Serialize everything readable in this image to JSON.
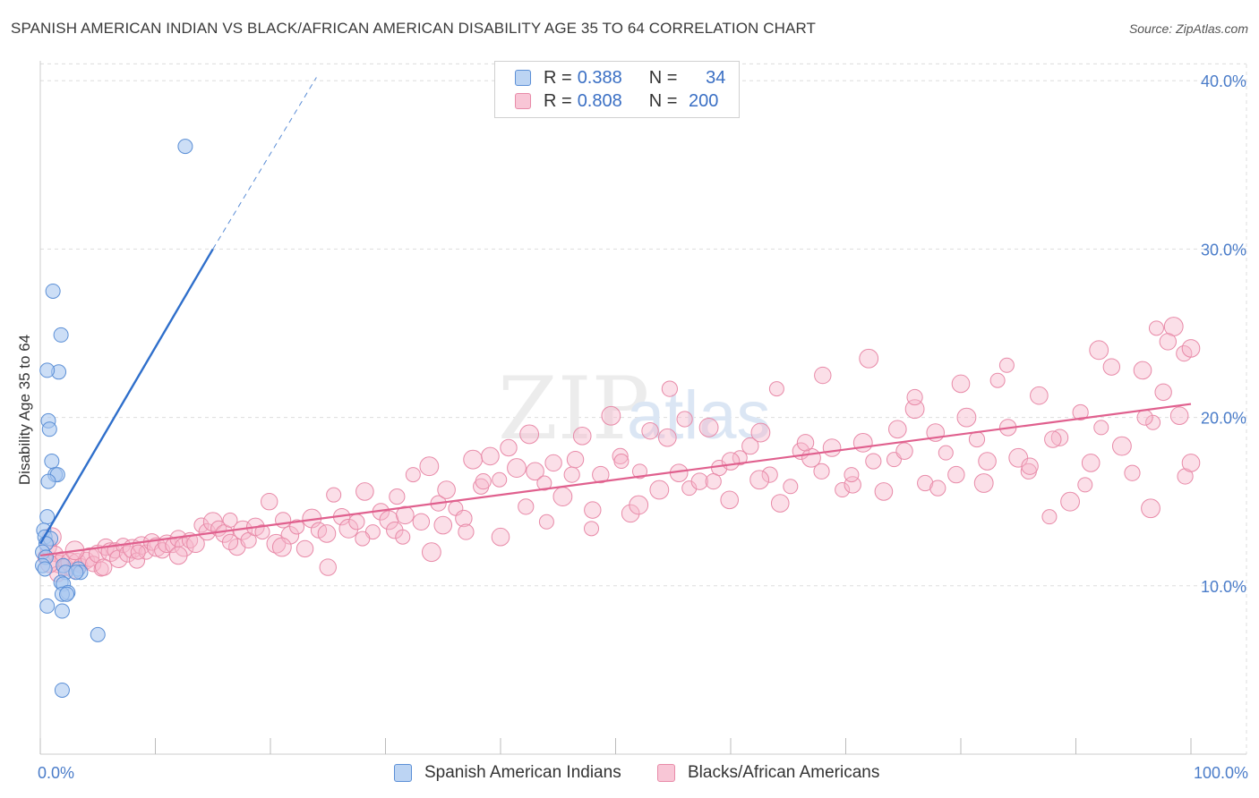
{
  "title": "SPANISH AMERICAN INDIAN VS BLACK/AFRICAN AMERICAN DISABILITY AGE 35 TO 64 CORRELATION CHART",
  "source": "Source: ZipAtlas.com",
  "watermark": {
    "zip": "ZIP",
    "atlas": "atlas"
  },
  "colors": {
    "blue_fill": "#aac8f0",
    "blue_stroke": "#5b8fd6",
    "blue_line": "#2f6fcb",
    "pink_fill": "#f6b8cb",
    "pink_stroke": "#e88aa8",
    "pink_line": "#e0608e",
    "tick_text": "#4a7cc9",
    "grid": "#dddddd"
  },
  "legend": {
    "rows": [
      {
        "r_label": "R =",
        "r_value": "0.388",
        "n_label": "N =",
        "n_value": "34"
      },
      {
        "r_label": "R =",
        "r_value": "0.808",
        "n_label": "N =",
        "n_value": "200"
      }
    ]
  },
  "bottom_legend": {
    "series1": "Spanish American Indians",
    "series2": "Blacks/African Americans"
  },
  "chart_data": {
    "type": "scatter",
    "title": "SPANISH AMERICAN INDIAN VS BLACK/AFRICAN AMERICAN DISABILITY AGE 35 TO 64 CORRELATION CHART",
    "xlabel": "",
    "ylabel": "Disability Age 35 to 64",
    "xlim": [
      0,
      100
    ],
    "ylim": [
      0,
      41.5
    ],
    "x_tick_labels": [
      "0.0%",
      "100.0%"
    ],
    "y_ticks": [
      {
        "value": 10,
        "label": "10.0%"
      },
      {
        "value": 20,
        "label": "20.0%"
      },
      {
        "value": 30,
        "label": "30.0%"
      },
      {
        "value": 40,
        "label": "40.0%"
      }
    ],
    "x_minor_ticks": [
      0,
      10,
      20,
      30,
      40,
      50,
      60,
      70,
      80,
      90,
      100
    ],
    "grid": true,
    "series": [
      {
        "name": "Spanish American Indians",
        "R": 0.388,
        "N": 34,
        "trend": {
          "x0": 0,
          "y0": 12.5,
          "x1": 15,
          "y1": 30.0,
          "dash_to_x": 24,
          "dash_to_y": 40.2
        },
        "points": [
          [
            12.6,
            36.1
          ],
          [
            1.1,
            27.5
          ],
          [
            1.8,
            24.9
          ],
          [
            1.6,
            22.7
          ],
          [
            0.6,
            22.8
          ],
          [
            0.7,
            19.8
          ],
          [
            0.8,
            19.3
          ],
          [
            1.0,
            17.4
          ],
          [
            1.3,
            16.6
          ],
          [
            1.5,
            16.6
          ],
          [
            0.7,
            16.2
          ],
          [
            0.6,
            14.1
          ],
          [
            0.3,
            13.3
          ],
          [
            0.4,
            12.9
          ],
          [
            0.9,
            12.8
          ],
          [
            0.5,
            12.5
          ],
          [
            0.2,
            12.0
          ],
          [
            0.5,
            11.7
          ],
          [
            0.2,
            11.2
          ],
          [
            0.4,
            11.0
          ],
          [
            2.0,
            11.2
          ],
          [
            3.3,
            11.0
          ],
          [
            3.5,
            10.8
          ],
          [
            2.2,
            10.8
          ],
          [
            1.8,
            10.2
          ],
          [
            2.0,
            10.1
          ],
          [
            2.4,
            9.6
          ],
          [
            1.9,
            9.5
          ],
          [
            2.3,
            9.5
          ],
          [
            0.6,
            8.8
          ],
          [
            1.9,
            8.5
          ],
          [
            5.0,
            7.1
          ],
          [
            1.9,
            3.8
          ],
          [
            3.1,
            10.8
          ]
        ]
      },
      {
        "name": "Blacks/African Americans",
        "R": 0.808,
        "N": 200,
        "trend": {
          "x0": 0,
          "y0": 11.8,
          "x1": 100,
          "y1": 20.8
        },
        "points": [
          [
            0.4,
            11.7
          ],
          [
            0.7,
            12.3
          ],
          [
            1.0,
            12.9
          ],
          [
            1.3,
            11.9
          ],
          [
            1.6,
            11.3
          ],
          [
            1.9,
            11.6
          ],
          [
            2.2,
            11.1
          ],
          [
            2.6,
            11.4
          ],
          [
            2.9,
            10.9
          ],
          [
            3.2,
            11.4
          ],
          [
            3.5,
            11.2
          ],
          [
            4.0,
            11.5
          ],
          [
            4.3,
            11.7
          ],
          [
            4.6,
            11.3
          ],
          [
            5.0,
            11.9
          ],
          [
            5.3,
            11.0
          ],
          [
            5.7,
            12.3
          ],
          [
            6.1,
            12.0
          ],
          [
            6.5,
            12.1
          ],
          [
            6.8,
            11.6
          ],
          [
            7.2,
            12.4
          ],
          [
            7.6,
            11.9
          ],
          [
            8.0,
            12.2
          ],
          [
            8.4,
            11.5
          ],
          [
            8.8,
            12.4
          ],
          [
            9.2,
            12.0
          ],
          [
            9.7,
            12.6
          ],
          [
            10.1,
            12.3
          ],
          [
            10.6,
            12.1
          ],
          [
            11.0,
            12.5
          ],
          [
            11.5,
            12.4
          ],
          [
            12.0,
            12.8
          ],
          [
            12.5,
            12.3
          ],
          [
            13.0,
            12.7
          ],
          [
            13.5,
            12.5
          ],
          [
            14.0,
            13.6
          ],
          [
            14.5,
            13.2
          ],
          [
            15.0,
            13.8
          ],
          [
            15.5,
            13.4
          ],
          [
            16.0,
            13.1
          ],
          [
            16.5,
            13.9
          ],
          [
            17.1,
            12.3
          ],
          [
            17.6,
            13.3
          ],
          [
            18.1,
            12.7
          ],
          [
            18.7,
            13.5
          ],
          [
            19.3,
            13.2
          ],
          [
            19.9,
            15.0
          ],
          [
            20.5,
            12.5
          ],
          [
            21.1,
            13.9
          ],
          [
            21.7,
            13.0
          ],
          [
            22.3,
            13.5
          ],
          [
            23.0,
            12.2
          ],
          [
            23.6,
            14.0
          ],
          [
            24.2,
            13.3
          ],
          [
            24.9,
            13.1
          ],
          [
            25.5,
            15.4
          ],
          [
            26.2,
            14.1
          ],
          [
            26.8,
            13.4
          ],
          [
            27.5,
            13.8
          ],
          [
            28.2,
            15.6
          ],
          [
            28.9,
            13.2
          ],
          [
            29.6,
            14.4
          ],
          [
            30.3,
            13.9
          ],
          [
            31.0,
            15.3
          ],
          [
            31.7,
            14.2
          ],
          [
            32.4,
            16.6
          ],
          [
            33.1,
            13.8
          ],
          [
            33.8,
            17.1
          ],
          [
            34.6,
            14.9
          ],
          [
            35.3,
            15.7
          ],
          [
            36.1,
            14.6
          ],
          [
            36.8,
            14.0
          ],
          [
            37.6,
            17.5
          ],
          [
            38.3,
            15.9
          ],
          [
            39.1,
            17.7
          ],
          [
            39.9,
            16.3
          ],
          [
            40.7,
            18.2
          ],
          [
            41.4,
            17.0
          ],
          [
            42.2,
            14.7
          ],
          [
            43.0,
            16.8
          ],
          [
            43.8,
            16.1
          ],
          [
            44.6,
            17.3
          ],
          [
            45.4,
            15.3
          ],
          [
            46.2,
            16.6
          ],
          [
            47.1,
            18.9
          ],
          [
            47.9,
            13.4
          ],
          [
            48.7,
            16.6
          ],
          [
            49.6,
            20.1
          ],
          [
            50.4,
            17.7
          ],
          [
            51.3,
            14.3
          ],
          [
            52.1,
            16.8
          ],
          [
            53.0,
            19.2
          ],
          [
            53.8,
            15.7
          ],
          [
            54.7,
            21.7
          ],
          [
            55.5,
            16.7
          ],
          [
            56.4,
            15.8
          ],
          [
            57.3,
            16.2
          ],
          [
            58.1,
            19.4
          ],
          [
            59.0,
            17.0
          ],
          [
            59.9,
            15.1
          ],
          [
            60.8,
            17.6
          ],
          [
            61.7,
            18.3
          ],
          [
            62.6,
            19.1
          ],
          [
            63.4,
            16.6
          ],
          [
            64.3,
            14.9
          ],
          [
            65.2,
            15.9
          ],
          [
            66.1,
            18.0
          ],
          [
            67.0,
            17.6
          ],
          [
            67.9,
            16.8
          ],
          [
            68.8,
            18.2
          ],
          [
            69.7,
            15.7
          ],
          [
            70.6,
            16.0
          ],
          [
            71.5,
            18.5
          ],
          [
            72.4,
            17.4
          ],
          [
            73.3,
            15.6
          ],
          [
            74.2,
            17.5
          ],
          [
            75.1,
            18.0
          ],
          [
            76.0,
            20.5
          ],
          [
            76.9,
            16.1
          ],
          [
            77.8,
            19.1
          ],
          [
            78.7,
            17.9
          ],
          [
            79.6,
            16.6
          ],
          [
            80.5,
            20.0
          ],
          [
            81.4,
            18.7
          ],
          [
            82.3,
            17.4
          ],
          [
            83.2,
            22.2
          ],
          [
            84.1,
            19.4
          ],
          [
            85.0,
            17.6
          ],
          [
            85.9,
            16.8
          ],
          [
            86.8,
            21.3
          ],
          [
            87.7,
            14.1
          ],
          [
            88.6,
            18.8
          ],
          [
            89.5,
            15.0
          ],
          [
            90.4,
            20.3
          ],
          [
            91.3,
            17.3
          ],
          [
            92.2,
            19.4
          ],
          [
            93.1,
            23.0
          ],
          [
            94.0,
            18.3
          ],
          [
            94.9,
            16.7
          ],
          [
            95.8,
            22.8
          ],
          [
            96.7,
            19.7
          ],
          [
            97.6,
            21.5
          ],
          [
            98.5,
            25.4
          ],
          [
            99.4,
            23.8
          ],
          [
            100.0,
            24.1
          ],
          [
            28.0,
            12.8
          ],
          [
            30.8,
            13.3
          ],
          [
            34.0,
            12.0
          ],
          [
            37.0,
            13.2
          ],
          [
            40.0,
            12.9
          ],
          [
            44.0,
            13.8
          ],
          [
            48.0,
            14.5
          ],
          [
            52.0,
            14.8
          ],
          [
            56.0,
            19.9
          ],
          [
            60.0,
            17.4
          ],
          [
            64.0,
            21.7
          ],
          [
            68.0,
            22.5
          ],
          [
            72.0,
            23.5
          ],
          [
            76.0,
            21.2
          ],
          [
            80.0,
            22.0
          ],
          [
            84.0,
            23.1
          ],
          [
            88.0,
            18.7
          ],
          [
            92.0,
            24.0
          ],
          [
            96.0,
            20.0
          ],
          [
            99.0,
            20.1
          ],
          [
            97.0,
            25.3
          ],
          [
            98.0,
            24.5
          ],
          [
            96.5,
            14.6
          ],
          [
            99.5,
            16.5
          ],
          [
            100.0,
            17.3
          ],
          [
            90.8,
            16.0
          ],
          [
            86.0,
            17.1
          ],
          [
            82.0,
            16.1
          ],
          [
            78.0,
            15.8
          ],
          [
            74.5,
            19.3
          ],
          [
            70.5,
            16.6
          ],
          [
            66.5,
            18.5
          ],
          [
            62.5,
            16.3
          ],
          [
            58.5,
            16.2
          ],
          [
            54.5,
            18.8
          ],
          [
            50.5,
            17.4
          ],
          [
            46.5,
            17.5
          ],
          [
            42.5,
            19.0
          ],
          [
            38.5,
            16.2
          ],
          [
            35.0,
            13.6
          ],
          [
            31.5,
            12.9
          ],
          [
            25.0,
            11.1
          ],
          [
            21.0,
            12.3
          ],
          [
            16.5,
            12.6
          ],
          [
            12.0,
            11.8
          ],
          [
            8.5,
            12.0
          ],
          [
            5.5,
            11.1
          ],
          [
            3.0,
            12.1
          ],
          [
            1.5,
            10.7
          ],
          [
            0.8,
            11.3
          ]
        ]
      }
    ]
  }
}
